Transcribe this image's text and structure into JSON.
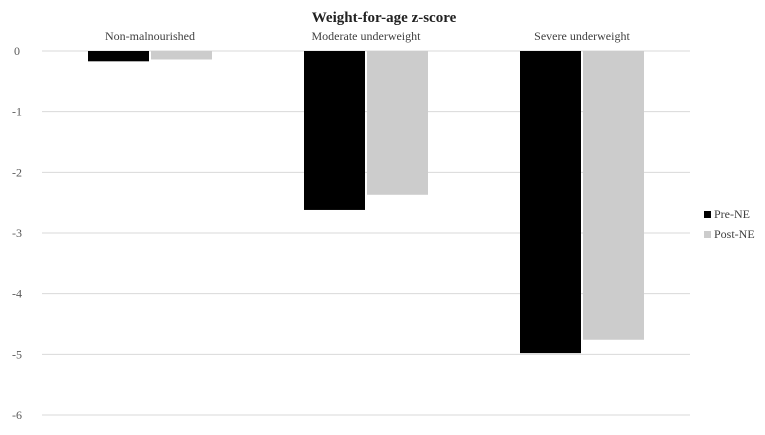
{
  "chart_data": {
    "type": "bar",
    "title": "Weight-for-age z-score",
    "xlabel": "",
    "ylabel": "",
    "categories": [
      "Non-malnourished",
      "Moderate underweight",
      "Severe underweight"
    ],
    "series": [
      {
        "name": "Pre-NE",
        "color": "#000000",
        "values": [
          -0.17,
          -2.62,
          -4.98
        ]
      },
      {
        "name": "Post-NE",
        "color": "#cccccc",
        "values": [
          -0.14,
          -2.37,
          -4.76
        ]
      }
    ],
    "ylim": [
      -6,
      0
    ],
    "yticks": [
      "0",
      "-1",
      "-2",
      "-3",
      "-4",
      "-5",
      "-6"
    ],
    "grid": true,
    "legend_position": "right"
  }
}
